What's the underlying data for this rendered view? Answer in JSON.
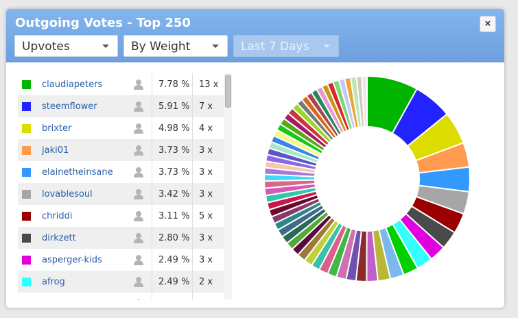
{
  "header": {
    "title": "Outgoing Votes - Top 250",
    "close_label": "×",
    "filters": {
      "type": "Upvotes",
      "sort": "By Weight",
      "period": "Last 7 Days"
    }
  },
  "votes": [
    {
      "name": "claudiapeters",
      "percent": "7.78 %",
      "count": "13 x",
      "color": "#00b400"
    },
    {
      "name": "steemflower",
      "percent": "5.91 %",
      "count": "7 x",
      "color": "#2323ff"
    },
    {
      "name": "brixter",
      "percent": "4.98 %",
      "count": "4 x",
      "color": "#dcdc00"
    },
    {
      "name": "jaki01",
      "percent": "3.73 %",
      "count": "3 x",
      "color": "#ff9a4f"
    },
    {
      "name": "elainetheinsane",
      "percent": "3.73 %",
      "count": "3 x",
      "color": "#3399ff"
    },
    {
      "name": "lovablesoul",
      "percent": "3.42 %",
      "count": "3 x",
      "color": "#a6a6a6"
    },
    {
      "name": "chriddi",
      "percent": "3.11 %",
      "count": "5 x",
      "color": "#9b0000"
    },
    {
      "name": "dirkzett",
      "percent": "2.80 %",
      "count": "3 x",
      "color": "#4a4a4a"
    },
    {
      "name": "asperger-kids",
      "percent": "2.49 %",
      "count": "3 x",
      "color": "#e000e0"
    },
    {
      "name": "afrog",
      "percent": "2.49 %",
      "count": "2 x",
      "color": "#33ffff"
    },
    {
      "name": "",
      "percent": "",
      "count": "",
      "color": "#22cc22"
    }
  ],
  "chart_data": {
    "type": "pie",
    "style": "donut",
    "categories": [
      "claudiapeters",
      "steemflower",
      "brixter",
      "jaki01",
      "elainetheinsane",
      "lovablesoul",
      "chriddi",
      "dirkzett",
      "asperger-kids",
      "afrog"
    ],
    "values": [
      7.78,
      5.91,
      4.98,
      3.73,
      3.73,
      3.42,
      3.11,
      2.8,
      2.49,
      2.49
    ],
    "colors": [
      "#00b400",
      "#2323ff",
      "#dcdc00",
      "#ff9a4f",
      "#3399ff",
      "#a6a6a6",
      "#9b0000",
      "#4a4a4a",
      "#e000e0",
      "#33ffff"
    ],
    "remaining_slices": [
      {
        "value": 2.3,
        "color": "#00d000"
      },
      {
        "value": 2.1,
        "color": "#7ab8ee"
      },
      {
        "value": 1.9,
        "color": "#b8b838"
      },
      {
        "value": 1.7,
        "color": "#c060c8"
      },
      {
        "value": 1.6,
        "color": "#8b2b2b"
      },
      {
        "value": 1.5,
        "color": "#7050b0"
      },
      {
        "value": 1.5,
        "color": "#d070b0"
      },
      {
        "value": 1.4,
        "color": "#40b848"
      },
      {
        "value": 1.4,
        "color": "#d8608a"
      },
      {
        "value": 1.3,
        "color": "#38c0a8"
      },
      {
        "value": 1.3,
        "color": "#c0d038"
      },
      {
        "value": 1.3,
        "color": "#a07838"
      },
      {
        "value": 1.2,
        "color": "#5a0a3a"
      },
      {
        "value": 1.2,
        "color": "#58a838"
      },
      {
        "value": 1.2,
        "color": "#2a6a5a"
      },
      {
        "value": 1.2,
        "color": "#406a88"
      },
      {
        "value": 1.1,
        "color": "#2a8888"
      },
      {
        "value": 1.1,
        "color": "#883a6a"
      },
      {
        "value": 1.1,
        "color": "#6a0a2a"
      },
      {
        "value": 1.1,
        "color": "#c81a4a"
      },
      {
        "value": 1.1,
        "color": "#30c8a8"
      },
      {
        "value": 1.1,
        "color": "#d858b8"
      },
      {
        "value": 1.1,
        "color": "#d86888"
      },
      {
        "value": 1.0,
        "color": "#40d8f8"
      },
      {
        "value": 1.0,
        "color": "#a878d8"
      },
      {
        "value": 1.0,
        "color": "#f8c8a8"
      },
      {
        "value": 1.0,
        "color": "#8868e8"
      },
      {
        "value": 1.0,
        "color": "#5858c8"
      },
      {
        "value": 1.0,
        "color": "#a8e8c8"
      },
      {
        "value": 1.0,
        "color": "#3888e8"
      },
      {
        "value": 1.0,
        "color": "#f8f888"
      },
      {
        "value": 1.0,
        "color": "#18c818"
      },
      {
        "value": 1.0,
        "color": "#58a818"
      },
      {
        "value": 1.0,
        "color": "#a81868"
      },
      {
        "value": 1.0,
        "color": "#c83838"
      },
      {
        "value": 1.0,
        "color": "#98d828"
      },
      {
        "value": 0.9,
        "color": "#787878"
      },
      {
        "value": 0.9,
        "color": "#d86818"
      },
      {
        "value": 0.9,
        "color": "#a84848"
      },
      {
        "value": 0.9,
        "color": "#288858"
      },
      {
        "value": 0.9,
        "color": "#e898d8"
      },
      {
        "value": 0.9,
        "color": "#c89818"
      },
      {
        "value": 0.9,
        "color": "#d82828"
      },
      {
        "value": 0.9,
        "color": "#78d878"
      },
      {
        "value": 0.9,
        "color": "#c8c8f8"
      },
      {
        "value": 0.9,
        "color": "#e8a838"
      },
      {
        "value": 0.9,
        "color": "#b8e8b8"
      },
      {
        "value": 0.8,
        "color": "#d8c8b8"
      },
      {
        "value": 0.8,
        "color": "#e8e8e8"
      }
    ]
  }
}
